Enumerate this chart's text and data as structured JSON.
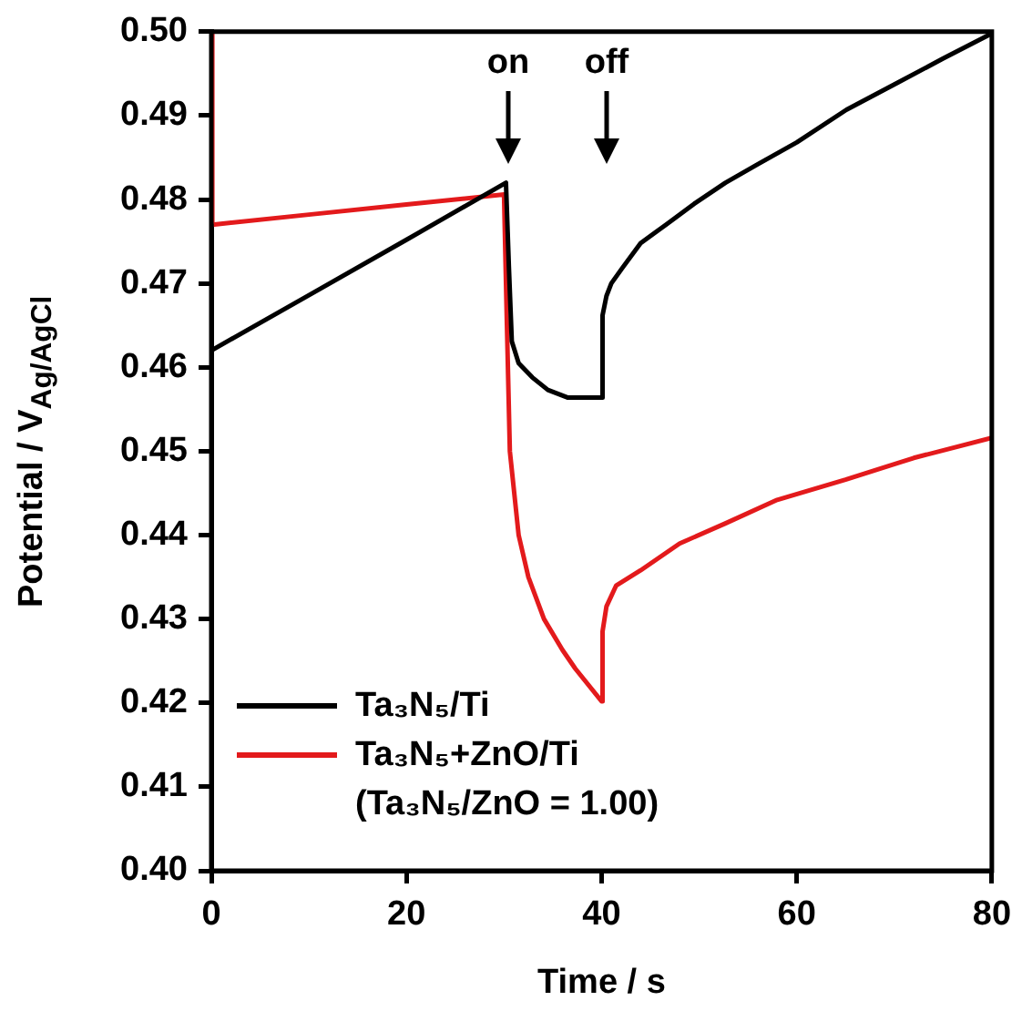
{
  "chart_data": {
    "type": "line",
    "xlabel": "Time / s",
    "ylabel": "Potential / V$_{Ag/AgCl}$",
    "xlim": [
      0,
      80
    ],
    "xticks": [
      0,
      20,
      40,
      60,
      80
    ],
    "ylim": [
      0.4,
      0.5
    ],
    "yticks": [
      {
        "value": 0.4,
        "label": "0.40"
      },
      0.41,
      0.42,
      0.43,
      0.44,
      0.45,
      0.46,
      0.47,
      0.48,
      0.49,
      {
        "value": 0.5,
        "label": "0.50"
      }
    ],
    "grid": false,
    "legend": "bottom left",
    "marker": "none",
    "line_style": "solid",
    "annotations": [
      "on",
      "off"
    ],
    "series": [
      {
        "name": "Ta₃N₅/Ti",
        "color": "#000000",
        "x": [
          0,
          0,
          10,
          20,
          30.2,
          30.5,
          30.8,
          31.5,
          32.9,
          34.5,
          36.5,
          40,
          40.1,
          40.5,
          41,
          42.1,
          44,
          46.6,
          49.5,
          52.7,
          56,
          60,
          65.1,
          70,
          75,
          80
        ],
        "values": [
          0.477,
          0.462,
          0.4686,
          0.4752,
          0.482,
          0.472,
          0.4631,
          0.4605,
          0.4588,
          0.4573,
          0.4564,
          0.4564,
          0.4662,
          0.4685,
          0.47,
          0.4718,
          0.4748,
          0.477,
          0.4795,
          0.482,
          0.4842,
          0.4868,
          0.4907,
          0.4937,
          0.4968,
          0.4998
        ]
      },
      {
        "name": "Ta₃N₅+ZnO/Ti (Ta₃N₅/ZnO = 1.00)",
        "color": "#e31a1c",
        "x": [
          0,
          0.1,
          10,
          20,
          30,
          30.3,
          30.6,
          31.5,
          32.5,
          34.1,
          36,
          37.3,
          40,
          40.1,
          40.5,
          41.5,
          44,
          48,
          52.7,
          58,
          65,
          72,
          80
        ],
        "values": [
          0.5,
          0.477,
          0.4782,
          0.4794,
          0.4806,
          0.465,
          0.45,
          0.44,
          0.435,
          0.43,
          0.4263,
          0.4241,
          0.4202,
          0.4285,
          0.4315,
          0.434,
          0.4358,
          0.439,
          0.4414,
          0.4442,
          0.4466,
          0.4492,
          0.4516
        ]
      }
    ]
  }
}
